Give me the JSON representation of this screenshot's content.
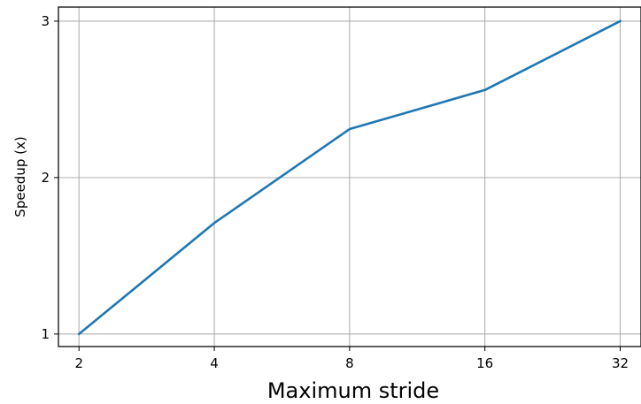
{
  "chart_data": {
    "type": "line",
    "x_scale": "log2",
    "x": [
      2,
      4,
      8,
      16,
      32
    ],
    "x_tick_labels": [
      "2",
      "4",
      "8",
      "16",
      "32"
    ],
    "y_ticks": [
      1,
      2,
      3
    ],
    "y_tick_labels": [
      "1",
      "2",
      "3"
    ],
    "series": [
      {
        "values": [
          1.0,
          1.71,
          2.31,
          2.56,
          3.0
        ]
      }
    ],
    "xlabel": "Maximum stride",
    "ylabel": "Speedup (x)",
    "xlim": [
      1.8,
      35.6
    ],
    "ylim": [
      0.92,
      3.09
    ],
    "grid": true,
    "colors": {
      "line": "#1f77b4",
      "grid": "#b0b0b0",
      "axes": "#000000"
    }
  }
}
